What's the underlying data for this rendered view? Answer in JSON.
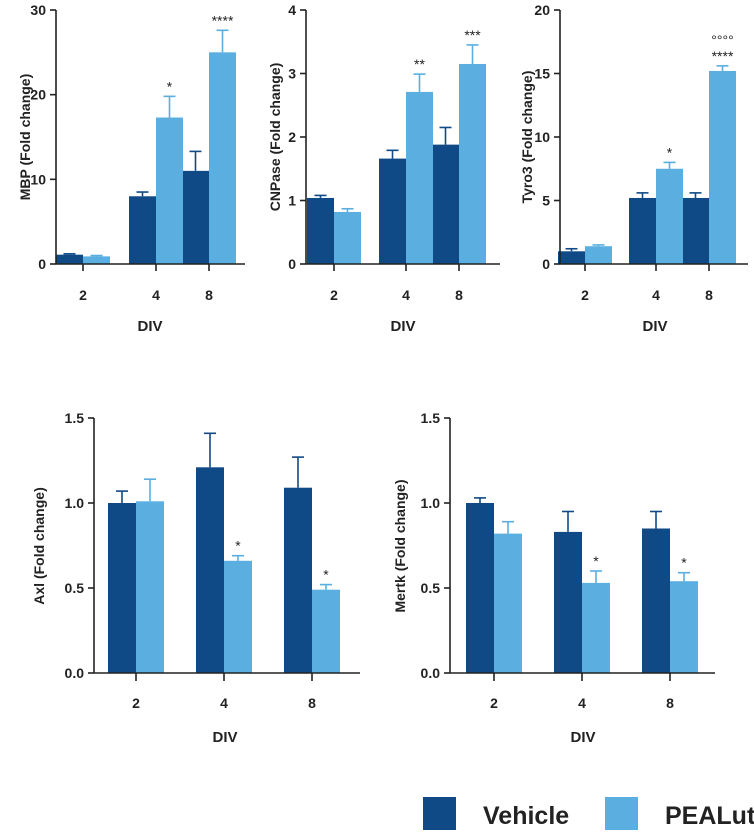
{
  "colors": {
    "vehicle": "#0f4a87",
    "pealut": "#5aaee0",
    "axis": "#222222"
  },
  "legend": {
    "items": [
      {
        "label": "Vehicle",
        "color": "#0f4a87"
      },
      {
        "label": "PEALut",
        "color": "#5aaee0"
      }
    ]
  },
  "chart_data": [
    {
      "id": "mbp",
      "type": "bar",
      "ylabel": "MBP (Fold change)",
      "xlabel": "DIV",
      "categories": [
        "2",
        "4",
        "8"
      ],
      "ylim": [
        0,
        30
      ],
      "yticks": [
        0,
        10,
        20,
        30
      ],
      "ytick_labels": [
        "0",
        "10",
        "20",
        "30"
      ],
      "series": [
        {
          "name": "Vehicle",
          "values": [
            1.1,
            8.0,
            11.0
          ],
          "errors": [
            0.1,
            0.5,
            2.3
          ]
        },
        {
          "name": "PEALut",
          "values": [
            0.9,
            17.3,
            25.0
          ],
          "errors": [
            0.1,
            2.5,
            2.6
          ]
        }
      ],
      "annotations": [
        {
          "series": 1,
          "category": 1,
          "lines": [
            "*"
          ]
        },
        {
          "series": 1,
          "category": 2,
          "lines": [
            "****"
          ]
        }
      ]
    },
    {
      "id": "cnpase",
      "type": "bar",
      "ylabel": "CNPase (Fold change)",
      "xlabel": "DIV",
      "categories": [
        "2",
        "4",
        "8"
      ],
      "ylim": [
        0,
        4
      ],
      "yticks": [
        0,
        1,
        2,
        3,
        4
      ],
      "ytick_labels": [
        "0",
        "1",
        "2",
        "3",
        "4"
      ],
      "series": [
        {
          "name": "Vehicle",
          "values": [
            1.04,
            1.66,
            1.88
          ],
          "errors": [
            0.04,
            0.13,
            0.27
          ]
        },
        {
          "name": "PEALut",
          "values": [
            0.82,
            2.71,
            3.15
          ],
          "errors": [
            0.05,
            0.28,
            0.3
          ]
        }
      ],
      "annotations": [
        {
          "series": 1,
          "category": 1,
          "lines": [
            "**"
          ]
        },
        {
          "series": 1,
          "category": 2,
          "lines": [
            "***"
          ]
        }
      ]
    },
    {
      "id": "tyro3",
      "type": "bar",
      "ylabel": "Tyro3 (Fold change)",
      "xlabel": "DIV",
      "categories": [
        "2",
        "4",
        "8"
      ],
      "ylim": [
        0,
        20
      ],
      "yticks": [
        0,
        5,
        10,
        15,
        20
      ],
      "ytick_labels": [
        "0",
        "5",
        "10",
        "15",
        "20"
      ],
      "series": [
        {
          "name": "Vehicle",
          "values": [
            1.0,
            5.2,
            5.2
          ],
          "errors": [
            0.2,
            0.4,
            0.4
          ]
        },
        {
          "name": "PEALut",
          "values": [
            1.4,
            7.5,
            15.2
          ],
          "errors": [
            0.1,
            0.5,
            0.4
          ]
        }
      ],
      "annotations": [
        {
          "series": 1,
          "category": 1,
          "lines": [
            "*"
          ]
        },
        {
          "series": 1,
          "category": 2,
          "lines": [
            "°°°°",
            "****"
          ]
        }
      ]
    },
    {
      "id": "axl",
      "type": "bar",
      "ylabel": "Axl (Fold change)",
      "xlabel": "DIV",
      "categories": [
        "2",
        "4",
        "8"
      ],
      "ylim": [
        0,
        1.5
      ],
      "yticks": [
        0,
        0.5,
        1.0,
        1.5
      ],
      "ytick_labels": [
        "0.0",
        "0.5",
        "1.0",
        "1.5"
      ],
      "series": [
        {
          "name": "Vehicle",
          "values": [
            1.0,
            1.21,
            1.09
          ],
          "errors": [
            0.07,
            0.2,
            0.18
          ]
        },
        {
          "name": "PEALut",
          "values": [
            1.01,
            0.66,
            0.49
          ],
          "errors": [
            0.13,
            0.03,
            0.03
          ]
        }
      ],
      "annotations": [
        {
          "series": 1,
          "category": 1,
          "lines": [
            "*"
          ]
        },
        {
          "series": 1,
          "category": 2,
          "lines": [
            "*"
          ]
        }
      ]
    },
    {
      "id": "mertk",
      "type": "bar",
      "ylabel": "Mertk (Fold change)",
      "xlabel": "DIV",
      "categories": [
        "2",
        "4",
        "8"
      ],
      "ylim": [
        0,
        1.5
      ],
      "yticks": [
        0,
        0.5,
        1.0,
        1.5
      ],
      "ytick_labels": [
        "0.0",
        "0.5",
        "1.0",
        "1.5"
      ],
      "series": [
        {
          "name": "Vehicle",
          "values": [
            1.0,
            0.83,
            0.85
          ],
          "errors": [
            0.03,
            0.12,
            0.1
          ]
        },
        {
          "name": "PEALut",
          "values": [
            0.82,
            0.53,
            0.54
          ],
          "errors": [
            0.07,
            0.07,
            0.05
          ]
        }
      ],
      "annotations": [
        {
          "series": 1,
          "category": 1,
          "lines": [
            "*"
          ]
        },
        {
          "series": 1,
          "category": 2,
          "lines": [
            "*"
          ]
        }
      ]
    }
  ]
}
